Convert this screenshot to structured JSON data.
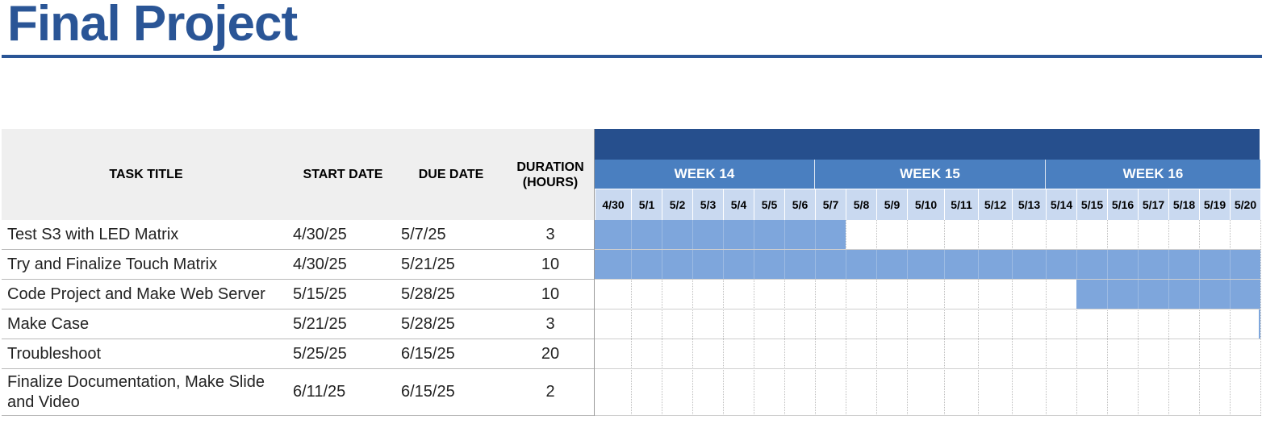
{
  "title": "Final Project",
  "columns": {
    "task": "TASK TITLE",
    "start": "START DATE",
    "due": "DUE DATE",
    "duration": "DURATION\n(HOURS)"
  },
  "weeks": [
    "WEEK 14",
    "WEEK 15",
    "WEEK 16"
  ],
  "days": [
    "4/30",
    "5/1",
    "5/2",
    "5/3",
    "5/4",
    "5/5",
    "5/6",
    "5/7",
    "5/8",
    "5/9",
    "5/10",
    "5/11",
    "5/12",
    "5/13",
    "5/14",
    "5/15",
    "5/16",
    "5/17",
    "5/18",
    "5/19",
    "5/20"
  ],
  "tasks": [
    {
      "title": "Test S3 with LED Matrix",
      "start": "4/30/25",
      "due": "5/7/25",
      "duration": "3"
    },
    {
      "title": "Try and Finalize Touch Matrix",
      "start": "4/30/25",
      "due": "5/21/25",
      "duration": "10"
    },
    {
      "title": "Code Project and Make Web Server",
      "start": "5/15/25",
      "due": "5/28/25",
      "duration": "10"
    },
    {
      "title": "Make Case",
      "start": "5/21/25",
      "due": "5/28/25",
      "duration": "3"
    },
    {
      "title": "Troubleshoot",
      "start": "5/25/25",
      "due": "6/15/25",
      "duration": "20"
    },
    {
      "title": "Finalize Documentation, Make Slide and Video",
      "start": "6/11/25",
      "due": "6/15/25",
      "duration": "2"
    }
  ],
  "colors": {
    "title": "#2a5596",
    "header_band": "#264f8d",
    "week_header": "#4a7fc0",
    "day_header": "#c9d9f0",
    "gantt_bar": "#7ea6dc"
  }
}
